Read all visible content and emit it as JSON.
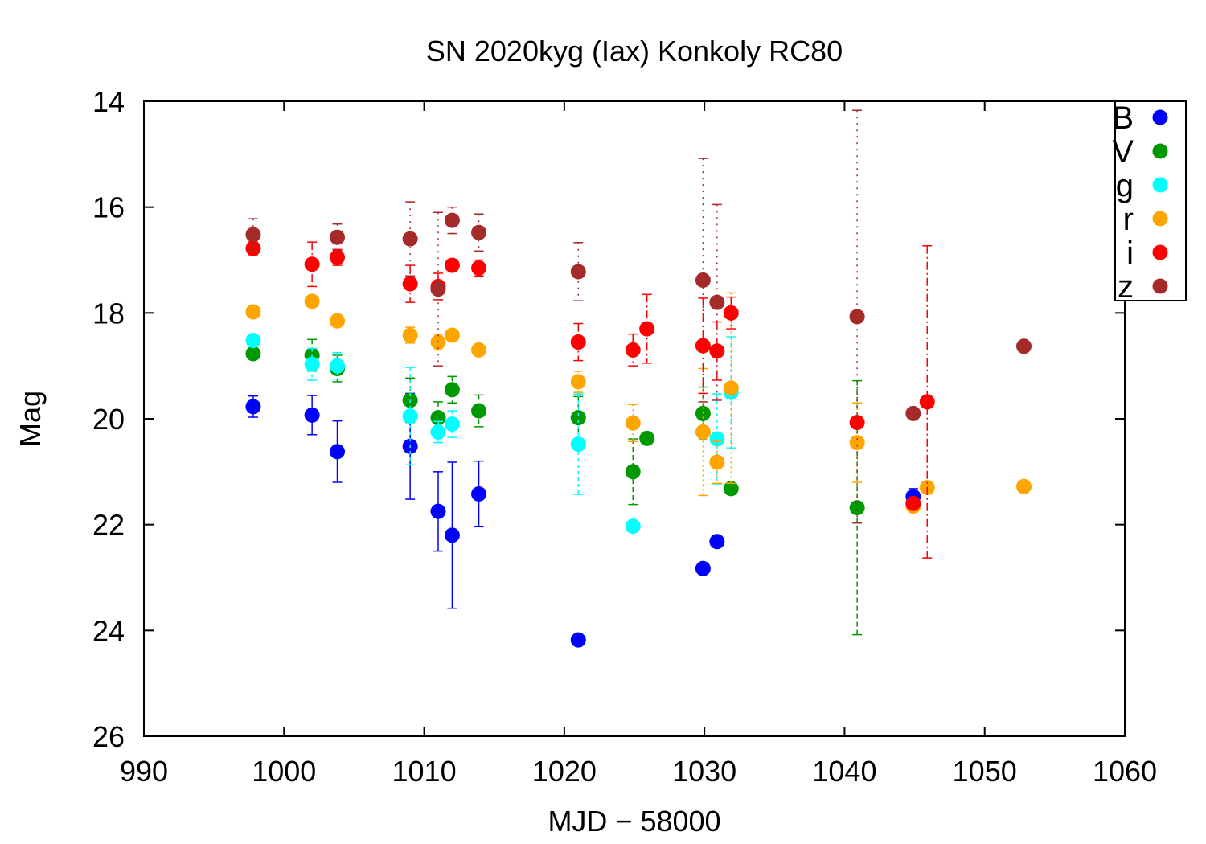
{
  "chart_data": {
    "type": "scatter",
    "title": "SN 2020kyg (Iax) Konkoly RC80",
    "xlabel": "MJD − 58000",
    "ylabel": "Mag",
    "xlim": [
      990,
      1060
    ],
    "ylim": [
      14,
      26
    ],
    "y_inverted": true,
    "x_ticks": [
      990,
      1000,
      1010,
      1020,
      1030,
      1040,
      1050,
      1060
    ],
    "y_ticks": [
      14,
      16,
      18,
      20,
      22,
      24,
      26
    ],
    "legend_position": "top-right",
    "grid": false,
    "series": [
      {
        "name": "B",
        "color": "#0000ff",
        "dash": "",
        "points": [
          {
            "x": 997.8,
            "y": 19.77,
            "err": 0.2
          },
          {
            "x": 1002.0,
            "y": 19.93,
            "err": 0.37
          },
          {
            "x": 1003.8,
            "y": 20.62,
            "err": 0.58
          },
          {
            "x": 1009.0,
            "y": 20.52,
            "err": 1.0
          },
          {
            "x": 1011.0,
            "y": 21.75,
            "err": 0.75
          },
          {
            "x": 1012.0,
            "y": 22.2,
            "err": 1.38
          },
          {
            "x": 1013.9,
            "y": 21.42,
            "err": 0.62
          },
          {
            "x": 1021.0,
            "y": 24.18,
            "err": 0.0
          },
          {
            "x": 1029.9,
            "y": 22.83,
            "err": 0.0
          },
          {
            "x": 1030.9,
            "y": 22.32,
            "err": 0.0
          },
          {
            "x": 1044.9,
            "y": 21.47,
            "err": 0.15
          }
        ]
      },
      {
        "name": "V",
        "color": "#009900",
        "dash": "6,4",
        "points": [
          {
            "x": 997.8,
            "y": 18.77,
            "err": 0.0
          },
          {
            "x": 1002.0,
            "y": 18.8,
            "err": 0.3
          },
          {
            "x": 1003.8,
            "y": 19.05,
            "err": 0.25
          },
          {
            "x": 1009.0,
            "y": 19.65,
            "err": 0.42
          },
          {
            "x": 1011.0,
            "y": 19.98,
            "err": 0.3
          },
          {
            "x": 1012.0,
            "y": 19.45,
            "err": 0.25
          },
          {
            "x": 1013.9,
            "y": 19.85,
            "err": 0.3
          },
          {
            "x": 1021.0,
            "y": 19.98,
            "err": 0.4
          },
          {
            "x": 1024.9,
            "y": 21.0,
            "err": 0.62
          },
          {
            "x": 1025.9,
            "y": 20.37,
            "err": 0.0
          },
          {
            "x": 1029.9,
            "y": 19.9,
            "err": 0.5
          },
          {
            "x": 1031.9,
            "y": 21.32,
            "err": 0.0
          },
          {
            "x": 1040.9,
            "y": 21.68,
            "err": 2.4
          }
        ]
      },
      {
        "name": "g",
        "color": "#00ffff",
        "dash": "4,4",
        "points": [
          {
            "x": 997.8,
            "y": 18.52,
            "err": 0.0
          },
          {
            "x": 1002.0,
            "y": 18.97,
            "err": 0.3
          },
          {
            "x": 1003.8,
            "y": 19.0,
            "err": 0.25
          },
          {
            "x": 1009.0,
            "y": 19.95,
            "err": 0.92
          },
          {
            "x": 1011.0,
            "y": 20.25,
            "err": 0.2
          },
          {
            "x": 1012.0,
            "y": 20.1,
            "err": 0.25
          },
          {
            "x": 1021.0,
            "y": 20.48,
            "err": 0.95
          },
          {
            "x": 1024.9,
            "y": 22.03,
            "err": 0.0
          },
          {
            "x": 1030.9,
            "y": 20.38,
            "err": 0.85
          },
          {
            "x": 1031.9,
            "y": 19.5,
            "err": 1.05
          }
        ]
      },
      {
        "name": "r",
        "color": "#ffa500",
        "dash": "2,4",
        "points": [
          {
            "x": 997.8,
            "y": 17.98,
            "err": 0.0
          },
          {
            "x": 1002.0,
            "y": 17.78,
            "err": 0.0
          },
          {
            "x": 1003.8,
            "y": 18.15,
            "err": 0.0
          },
          {
            "x": 1009.0,
            "y": 18.42,
            "err": 0.15
          },
          {
            "x": 1011.0,
            "y": 18.55,
            "err": 0.15
          },
          {
            "x": 1012.0,
            "y": 18.42,
            "err": 0.0
          },
          {
            "x": 1013.9,
            "y": 18.7,
            "err": 0.0
          },
          {
            "x": 1021.0,
            "y": 19.3,
            "err": 0.2
          },
          {
            "x": 1024.9,
            "y": 20.08,
            "err": 0.35
          },
          {
            "x": 1029.9,
            "y": 20.25,
            "err": 1.2
          },
          {
            "x": 1030.9,
            "y": 20.82,
            "err": 0.4
          },
          {
            "x": 1031.9,
            "y": 19.42,
            "err": 1.8
          },
          {
            "x": 1040.9,
            "y": 20.45,
            "err": 0.75
          },
          {
            "x": 1044.9,
            "y": 21.65,
            "err": 0.0
          },
          {
            "x": 1045.9,
            "y": 21.3,
            "err": 0.0
          },
          {
            "x": 1052.8,
            "y": 21.28,
            "err": 0.0
          }
        ]
      },
      {
        "name": "i",
        "color": "#ff0000",
        "dash": "10,4,2,4",
        "points": [
          {
            "x": 997.8,
            "y": 16.78,
            "err": 0.12
          },
          {
            "x": 1002.0,
            "y": 17.08,
            "err": 0.42
          },
          {
            "x": 1003.8,
            "y": 16.95,
            "err": 0.15
          },
          {
            "x": 1009.0,
            "y": 17.45,
            "err": 0.35
          },
          {
            "x": 1011.0,
            "y": 17.5,
            "err": 0.25
          },
          {
            "x": 1012.0,
            "y": 17.1,
            "err": 0.0
          },
          {
            "x": 1013.9,
            "y": 17.15,
            "err": 0.15
          },
          {
            "x": 1021.0,
            "y": 18.55,
            "err": 0.35
          },
          {
            "x": 1024.9,
            "y": 18.7,
            "err": 0.3
          },
          {
            "x": 1025.9,
            "y": 18.3,
            "err": 0.65
          },
          {
            "x": 1029.9,
            "y": 18.62,
            "err": 0.9
          },
          {
            "x": 1030.9,
            "y": 18.72,
            "err": 0.55
          },
          {
            "x": 1031.9,
            "y": 18.0,
            "err": 0.3
          },
          {
            "x": 1040.9,
            "y": 20.07,
            "err": 0.0
          },
          {
            "x": 1044.9,
            "y": 21.6,
            "err": 0.0
          },
          {
            "x": 1045.9,
            "y": 19.68,
            "err": 2.95
          }
        ]
      },
      {
        "name": "z",
        "color": "#a52a2a",
        "dash": "2,6",
        "points": [
          {
            "x": 997.8,
            "y": 16.52,
            "err": 0.3
          },
          {
            "x": 1003.8,
            "y": 16.57,
            "err": 0.25
          },
          {
            "x": 1009.0,
            "y": 16.6,
            "err": 0.7
          },
          {
            "x": 1011.0,
            "y": 17.55,
            "err": 1.45
          },
          {
            "x": 1012.0,
            "y": 16.25,
            "err": 0.25
          },
          {
            "x": 1013.9,
            "y": 16.48,
            "err": 0.35
          },
          {
            "x": 1021.0,
            "y": 17.22,
            "err": 0.55
          },
          {
            "x": 1029.9,
            "y": 17.38,
            "err": 2.3
          },
          {
            "x": 1030.9,
            "y": 17.8,
            "err": 1.85
          },
          {
            "x": 1040.9,
            "y": 18.07,
            "err": 3.9
          },
          {
            "x": 1044.9,
            "y": 19.9,
            "err": 0.0
          },
          {
            "x": 1052.8,
            "y": 18.63,
            "err": 0.0
          }
        ]
      }
    ]
  }
}
